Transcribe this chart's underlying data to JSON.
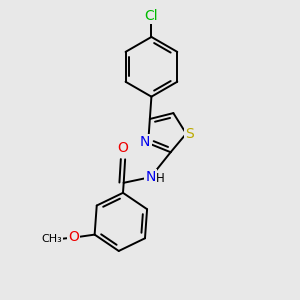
{
  "bg": "#e8e8e8",
  "bc": "#000000",
  "bw": 1.4,
  "dbo": 0.055,
  "atom_colors": {
    "Cl": "#00bb00",
    "N": "#0000ee",
    "S": "#bbaa00",
    "O": "#ee0000"
  },
  "fs": 9.5,
  "figsize": [
    3.0,
    3.0
  ],
  "dpi": 100,
  "xlim": [
    -1.3,
    1.3
  ],
  "ylim": [
    -1.55,
    2.65
  ]
}
